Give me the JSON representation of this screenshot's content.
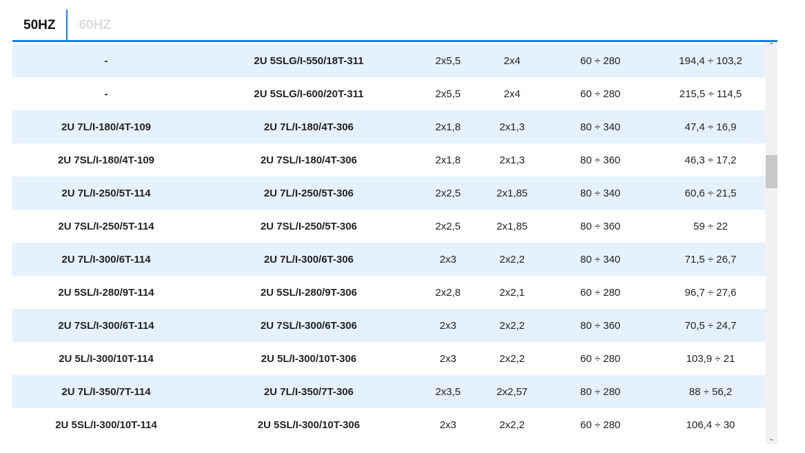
{
  "tabs": [
    {
      "label": "50HZ",
      "active": true
    },
    {
      "label": "60HZ",
      "active": false
    }
  ],
  "rows": [
    [
      "-",
      "2U 5SLG/I-550/18T-311",
      "2x5,5",
      "2x4",
      "60 ÷ 280",
      "194,4 ÷ 103,2"
    ],
    [
      "-",
      "2U 5SLG/I-600/20T-311",
      "2x5,5",
      "2x4",
      "60 ÷ 280",
      "215,5 ÷ 114,5"
    ],
    [
      "2U 7L/I-180/4T-109",
      "2U 7L/I-180/4T-306",
      "2x1,8",
      "2x1,3",
      "80 ÷ 340",
      "47,4 ÷ 16,9"
    ],
    [
      "2U 7SL/I-180/4T-109",
      "2U 7SL/I-180/4T-306",
      "2x1,8",
      "2x1,3",
      "80 ÷ 360",
      "46,3 ÷ 17,2"
    ],
    [
      "2U 7L/I-250/5T-114",
      "2U 7L/I-250/5T-306",
      "2x2,5",
      "2x1,85",
      "80 ÷ 340",
      "60,6 ÷ 21,5"
    ],
    [
      "2U 7SL/I-250/5T-114",
      "2U 7SL/I-250/5T-306",
      "2x2,5",
      "2x1,85",
      "80 ÷ 360",
      "59 ÷ 22"
    ],
    [
      "2U 7L/I-300/6T-114",
      "2U 7L/I-300/6T-306",
      "2x3",
      "2x2,2",
      "80 ÷ 340",
      "71,5 ÷ 26,7"
    ],
    [
      "2U 5SL/I-280/9T-114",
      "2U 5SL/I-280/9T-306",
      "2x2,8",
      "2x2,1",
      "60 ÷ 280",
      "96,7 ÷ 27,6"
    ],
    [
      "2U 7SL/I-300/6T-114",
      "2U 7SL/I-300/6T-306",
      "2x3",
      "2x2,2",
      "80 ÷ 360",
      "70,5 ÷ 24,7"
    ],
    [
      "2U 5L/I-300/10T-114",
      "2U 5L/I-300/10T-306",
      "2x3",
      "2x2,2",
      "60 ÷ 280",
      "103,9 ÷ 21"
    ],
    [
      "2U 7L/I-350/7T-114",
      "2U 7L/I-350/7T-306",
      "2x3,5",
      "2x2,57",
      "80 ÷ 280",
      "88 ÷ 56,2"
    ],
    [
      "2U 5SL/I-300/10T-114",
      "2U 5SL/I-300/10T-306",
      "2x3",
      "2x2,2",
      "60 ÷ 280",
      "106,4 ÷ 30"
    ]
  ],
  "colors": {
    "accent": "#1a7ef0",
    "row_alt": "#e6f1fe"
  },
  "scrollbar": {
    "position_fraction": 0.3
  }
}
